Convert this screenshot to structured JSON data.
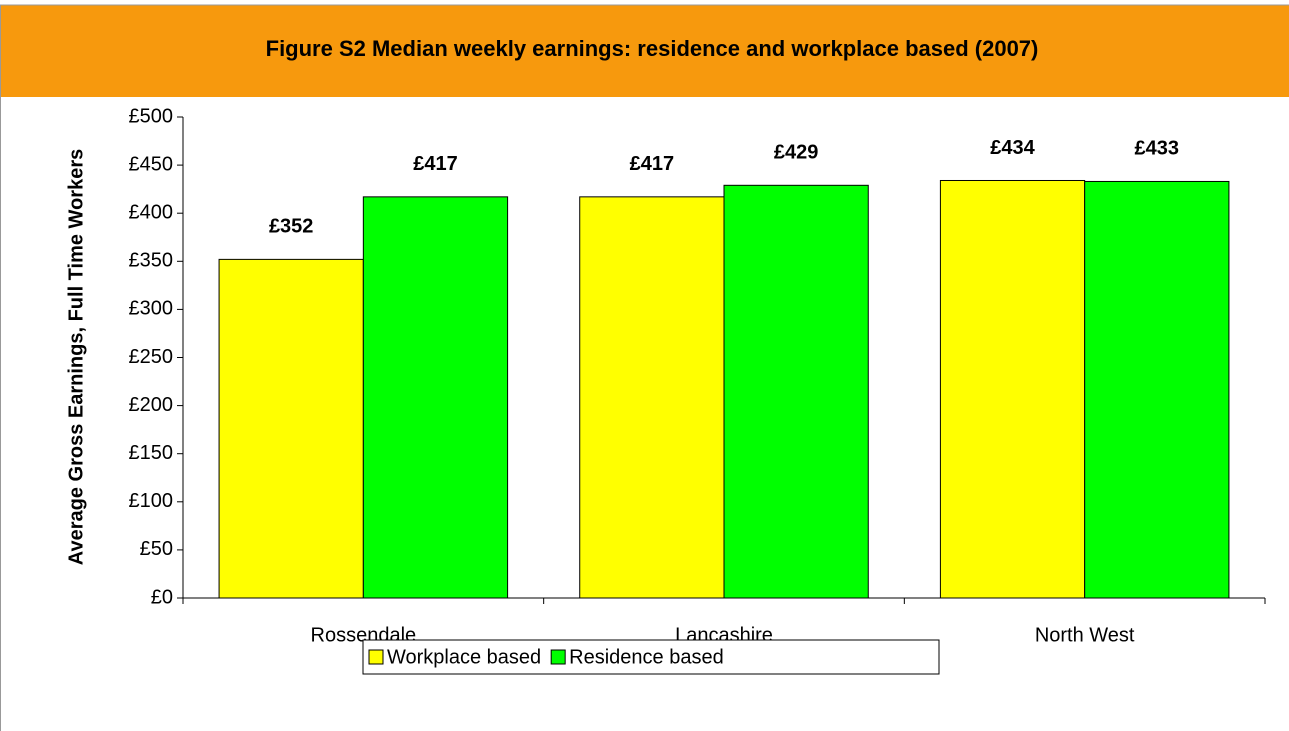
{
  "chart_data": {
    "type": "bar",
    "title": "Figure S2 Median weekly earnings: residence and workplace based (2007)",
    "ylabel": "Average Gross Earnings, Full Time Workers",
    "categories": [
      "Rossendale",
      "Lancashire",
      "North West"
    ],
    "series": [
      {
        "name": "Workplace based",
        "color": "#ffff00",
        "values": [
          352,
          417,
          434
        ],
        "value_labels": [
          "£352",
          "£417",
          "£434"
        ]
      },
      {
        "name": "Residence based",
        "color": "#00ff00",
        "values": [
          417,
          429,
          433
        ],
        "value_labels": [
          "£417",
          "£429",
          "£433"
        ]
      }
    ],
    "ylim": [
      0,
      500
    ],
    "yticks": [
      {
        "value": 0,
        "label": "£0"
      },
      {
        "value": 50,
        "label": "£50"
      },
      {
        "value": 100,
        "label": "£100"
      },
      {
        "value": 150,
        "label": "£150"
      },
      {
        "value": 200,
        "label": "£200"
      },
      {
        "value": 250,
        "label": "£250"
      },
      {
        "value": 300,
        "label": "£300"
      },
      {
        "value": 350,
        "label": "£350"
      },
      {
        "value": 400,
        "label": "£400"
      },
      {
        "value": 450,
        "label": "£450"
      },
      {
        "value": 500,
        "label": "£500"
      }
    ],
    "header_color": "#f7990d"
  }
}
